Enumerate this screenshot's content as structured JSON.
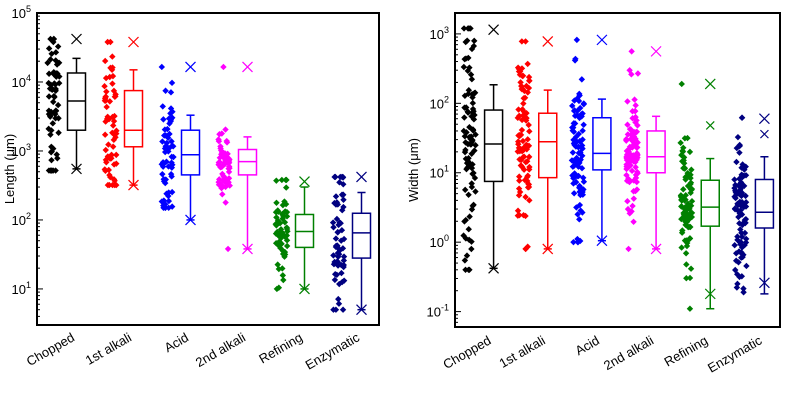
{
  "chart_data": [
    {
      "type": "box+strip",
      "title": "",
      "xlabel": "",
      "ylabel": "Length (μm)",
      "yscale": "log",
      "ylim": [
        3,
        100000
      ],
      "ytick_values": [
        10,
        100,
        1000,
        10000,
        100000
      ],
      "ytick_labels": [
        {
          "base": "10",
          "exp": "1"
        },
        {
          "base": "10",
          "exp": "2"
        },
        {
          "base": "10",
          "exp": "3"
        },
        {
          "base": "10",
          "exp": "4"
        },
        {
          "base": "10",
          "exp": "5"
        }
      ],
      "categories": [
        "Chopped",
        "1st alkali",
        "Acid",
        "2nd alkali",
        "Refining",
        "Enzymatic"
      ],
      "series": [
        {
          "name": "Chopped",
          "color": "#000000",
          "q1": 2000,
          "median": 5300,
          "q3": 13500,
          "whisker_low": 550,
          "whisker_high": 22000,
          "min": 550,
          "max": 42000,
          "scatter_low": 520,
          "scatter_high": 42000
        },
        {
          "name": "1st alkali",
          "color": "#ff0000",
          "q1": 1150,
          "median": 2000,
          "q3": 7500,
          "whisker_low": 320,
          "whisker_high": 15000,
          "min": 320,
          "max": 38000,
          "scatter_low": 320,
          "scatter_high": 38000
        },
        {
          "name": "Acid",
          "color": "#0000ff",
          "q1": 450,
          "median": 880,
          "q3": 2000,
          "whisker_low": 100,
          "whisker_high": 3300,
          "min": 100,
          "max": 16500,
          "scatter_low": 150,
          "scatter_high": 16500
        },
        {
          "name": "2nd alkali",
          "color": "#ff00ff",
          "q1": 450,
          "median": 700,
          "q3": 1050,
          "whisker_low": 38,
          "whisker_high": 1600,
          "min": 38,
          "max": 16500,
          "scatter_low": 38,
          "scatter_high": 16500
        },
        {
          "name": "Refining",
          "color": "#008000",
          "q1": 40,
          "median": 68,
          "q3": 120,
          "whisker_low": 10,
          "whisker_high": 300,
          "min": 10,
          "max": 360,
          "scatter_low": 10,
          "scatter_high": 380
        },
        {
          "name": "Enzymatic",
          "color": "#000080",
          "q1": 28,
          "median": 65,
          "q3": 125,
          "whisker_low": 5,
          "whisker_high": 250,
          "min": 5,
          "max": 420,
          "scatter_low": 5,
          "scatter_high": 420
        }
      ]
    },
    {
      "type": "box+strip",
      "title": "",
      "xlabel": "",
      "ylabel": "Width (μm)",
      "yscale": "log",
      "ylim": [
        0.06,
        2000
      ],
      "ytick_values": [
        0.1,
        1,
        10,
        100,
        1000
      ],
      "ytick_labels": [
        {
          "base": "10",
          "exp": "-1"
        },
        {
          "base": "10",
          "exp": "0"
        },
        {
          "base": "10",
          "exp": "1"
        },
        {
          "base": "10",
          "exp": "2"
        },
        {
          "base": "10",
          "exp": "3"
        }
      ],
      "categories": [
        "Chopped",
        "1st alkali",
        "Acid",
        "2nd alkali",
        "Refining",
        "Enzymatic"
      ],
      "series": [
        {
          "name": "Chopped",
          "color": "#000000",
          "q1": 7.5,
          "median": 26,
          "q3": 80,
          "whisker_low": 0.42,
          "whisker_high": 185,
          "min": 0.42,
          "max": 1150,
          "scatter_low": 0.4,
          "scatter_high": 1200
        },
        {
          "name": "1st alkali",
          "color": "#ff0000",
          "q1": 8.5,
          "median": 28,
          "q3": 72,
          "whisker_low": 0.8,
          "whisker_high": 155,
          "min": 0.8,
          "max": 780,
          "scatter_low": 0.8,
          "scatter_high": 780
        },
        {
          "name": "Acid",
          "color": "#0000ff",
          "q1": 11,
          "median": 19,
          "q3": 62,
          "whisker_low": 1.05,
          "whisker_high": 115,
          "min": 1.05,
          "max": 820,
          "scatter_low": 1.0,
          "scatter_high": 820
        },
        {
          "name": "2nd alkali",
          "color": "#ff00ff",
          "q1": 10,
          "median": 17,
          "q3": 40,
          "whisker_low": 0.8,
          "whisker_high": 65,
          "min": 0.8,
          "max": 560,
          "scatter_low": 0.8,
          "scatter_high": 560
        },
        {
          "name": "Refining",
          "color": "#008000",
          "q1": 1.7,
          "median": 3.2,
          "q3": 7.8,
          "whisker_low": 0.11,
          "whisker_high": 16,
          "min": 0.18,
          "max": 190,
          "scatter_low": 0.11,
          "scatter_high": 190,
          "extra_marks": [
            48
          ]
        },
        {
          "name": "Enzymatic",
          "color": "#000080",
          "q1": 1.6,
          "median": 2.7,
          "q3": 8,
          "whisker_low": 0.18,
          "whisker_high": 17,
          "min": 0.26,
          "max": 60,
          "scatter_low": 0.19,
          "scatter_high": 62,
          "extra_marks": [
            36
          ]
        }
      ]
    }
  ]
}
